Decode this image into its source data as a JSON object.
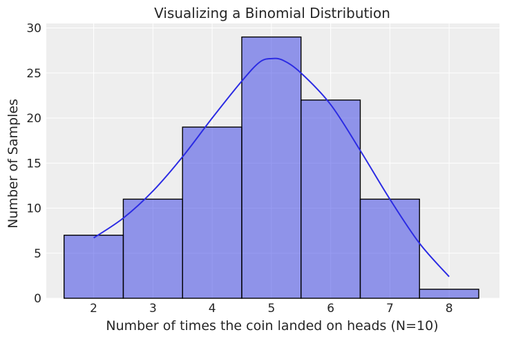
{
  "chart_data": {
    "type": "bar",
    "title": "Visualizing a Binomial Distribution",
    "xlabel": "Number of times the coin landed on heads (N=10)",
    "ylabel": "Number of Samples",
    "categories": [
      2,
      3,
      4,
      5,
      6,
      7,
      8
    ],
    "values": [
      7,
      11,
      19,
      29,
      22,
      11,
      1
    ],
    "bin_width": 1,
    "xlim": [
      1.2,
      8.85
    ],
    "ylim": [
      0,
      30.5
    ],
    "xticks": [
      2,
      3,
      4,
      5,
      6,
      7,
      8
    ],
    "yticks": [
      0,
      5,
      10,
      15,
      20,
      25,
      30
    ],
    "kde": {
      "x": [
        2.0,
        2.5,
        3.0,
        3.5,
        4.0,
        4.5,
        4.8,
        5.0,
        5.2,
        5.5,
        6.0,
        6.5,
        7.0,
        7.5,
        8.0
      ],
      "y": [
        6.7,
        8.9,
        11.9,
        15.7,
        20.0,
        24.1,
        26.2,
        26.6,
        26.4,
        25.0,
        21.5,
        16.4,
        11.0,
        6.1,
        2.4
      ]
    },
    "grid": true,
    "bar_color": "#4149e6",
    "kde_color": "#2b2be3"
  }
}
